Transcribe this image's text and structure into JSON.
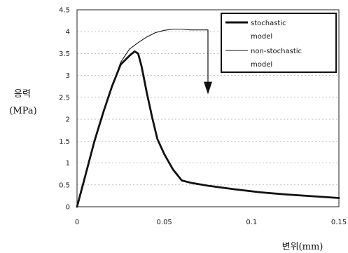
{
  "chart_data": {
    "type": "line",
    "title": "",
    "ylabel": "응력",
    "ylabel_unit": "(MPa)",
    "xlabel": "변위(mm)",
    "xlim": [
      0,
      0.15
    ],
    "ylim": [
      0,
      4.5
    ],
    "x_ticks": [
      "0",
      "0.05",
      "0.1",
      "0.15"
    ],
    "y_ticks": [
      "0",
      "0.5",
      "1",
      "1.5",
      "2",
      "2.5",
      "3",
      "3.5",
      "4",
      "4.5"
    ],
    "x_tick_values": [
      0,
      0.05,
      0.1,
      0.15
    ],
    "y_tick_values": [
      0,
      0.5,
      1,
      1.5,
      2,
      2.5,
      3,
      3.5,
      4,
      4.5
    ],
    "grid": "horizontal dashed",
    "legend_position": "top-right",
    "series": [
      {
        "name": "stochastic model",
        "line_weight": "thick",
        "color": "#111111",
        "points": [
          [
            0,
            0
          ],
          [
            0.005,
            0.75
          ],
          [
            0.01,
            1.5
          ],
          [
            0.015,
            2.15
          ],
          [
            0.02,
            2.75
          ],
          [
            0.025,
            3.25
          ],
          [
            0.03,
            3.45
          ],
          [
            0.033,
            3.55
          ],
          [
            0.035,
            3.5
          ],
          [
            0.037,
            3.2
          ],
          [
            0.04,
            2.6
          ],
          [
            0.043,
            2.05
          ],
          [
            0.046,
            1.55
          ],
          [
            0.05,
            1.2
          ],
          [
            0.055,
            0.85
          ],
          [
            0.06,
            0.6
          ],
          [
            0.065,
            0.55
          ],
          [
            0.075,
            0.48
          ],
          [
            0.09,
            0.4
          ],
          [
            0.105,
            0.33
          ],
          [
            0.12,
            0.28
          ],
          [
            0.135,
            0.24
          ],
          [
            0.15,
            0.2
          ]
        ]
      },
      {
        "name": "non-stochastic model",
        "line_weight": "thin",
        "color": "#111111",
        "points": [
          [
            0,
            0
          ],
          [
            0.005,
            0.75
          ],
          [
            0.01,
            1.5
          ],
          [
            0.015,
            2.15
          ],
          [
            0.02,
            2.75
          ],
          [
            0.025,
            3.3
          ],
          [
            0.03,
            3.6
          ],
          [
            0.035,
            3.75
          ],
          [
            0.04,
            3.88
          ],
          [
            0.045,
            3.98
          ],
          [
            0.05,
            4.03
          ],
          [
            0.055,
            4.06
          ],
          [
            0.06,
            4.06
          ],
          [
            0.065,
            4.04
          ],
          [
            0.075,
            4.04
          ]
        ]
      }
    ],
    "annotations": [
      {
        "type": "arrow-down",
        "x": 0.075,
        "y_from": 4.04,
        "y_to": 2.6
      }
    ]
  }
}
